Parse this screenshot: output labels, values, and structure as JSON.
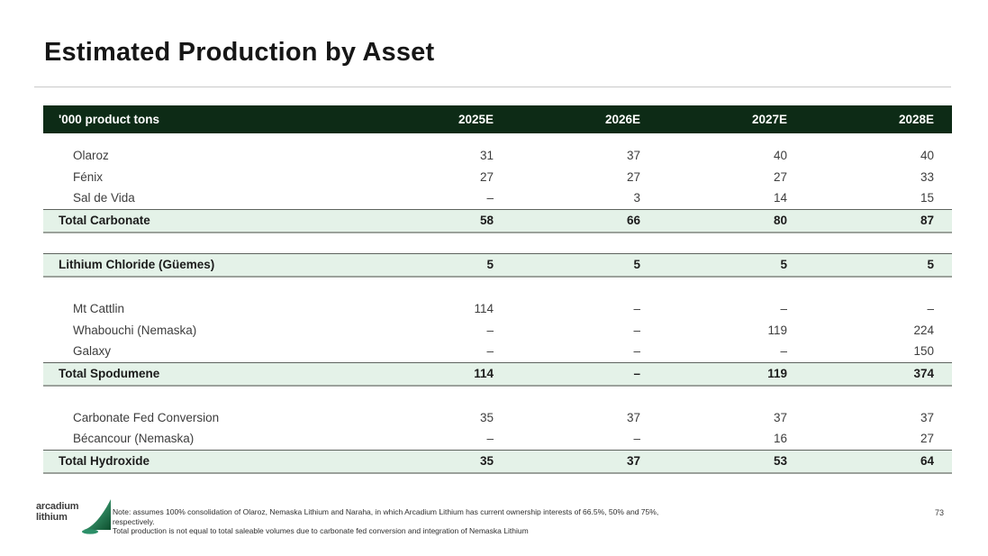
{
  "title": "Estimated Production by Asset",
  "table": {
    "header": {
      "label": "'000 product tons",
      "years": [
        "2025E",
        "2026E",
        "2027E",
        "2028E"
      ]
    },
    "rows": [
      {
        "type": "data",
        "label": "Olaroz",
        "values": [
          "31",
          "37",
          "40",
          "40"
        ]
      },
      {
        "type": "data",
        "label": "Fénix",
        "values": [
          "27",
          "27",
          "27",
          "33"
        ]
      },
      {
        "type": "data",
        "label": "Sal de Vida",
        "values": [
          "–",
          "3",
          "14",
          "15"
        ]
      },
      {
        "type": "total",
        "label": "Total Carbonate",
        "values": [
          "58",
          "66",
          "80",
          "87"
        ]
      },
      {
        "type": "spacer"
      },
      {
        "type": "total",
        "label": "Lithium Chloride (Güemes)",
        "values": [
          "5",
          "5",
          "5",
          "5"
        ]
      },
      {
        "type": "spacer"
      },
      {
        "type": "data",
        "label": "Mt Cattlin",
        "values": [
          "114",
          "–",
          "–",
          "–"
        ]
      },
      {
        "type": "data",
        "label": "Whabouchi (Nemaska)",
        "values": [
          "–",
          "–",
          "119",
          "224"
        ]
      },
      {
        "type": "data",
        "label": "Galaxy",
        "values": [
          "–",
          "–",
          "–",
          "150"
        ]
      },
      {
        "type": "total",
        "label": "Total Spodumene",
        "values": [
          "114",
          "–",
          "119",
          "374"
        ]
      },
      {
        "type": "spacer"
      },
      {
        "type": "data",
        "label": "Carbonate Fed Conversion",
        "values": [
          "35",
          "37",
          "37",
          "37"
        ]
      },
      {
        "type": "data",
        "label": "Bécancour (Nemaska)",
        "values": [
          "–",
          "–",
          "16",
          "27"
        ]
      },
      {
        "type": "total",
        "label": "Total Hydroxide",
        "values": [
          "35",
          "37",
          "53",
          "64"
        ]
      }
    ]
  },
  "footer": {
    "logo_line1": "arcadium",
    "logo_line2": "lithium",
    "note_line1": "Note: assumes 100% consolidation of Olaroz, Nemaska Lithium and Naraha, in which Arcadium Lithium has current ownership interests of 66.5%, 50% and 75%, respectively.",
    "note_line2": "Total production is not equal to total saleable volumes due to carbonate fed conversion and integration of Nemaska Lithium",
    "page_number": "73"
  },
  "colors": {
    "header_bg": "#0d2b16",
    "total_row_bg": "#e4f2e8",
    "rule": "#c9c9c9",
    "logo_green_light": "#55c496",
    "logo_green_dark": "#0d4e2d"
  }
}
